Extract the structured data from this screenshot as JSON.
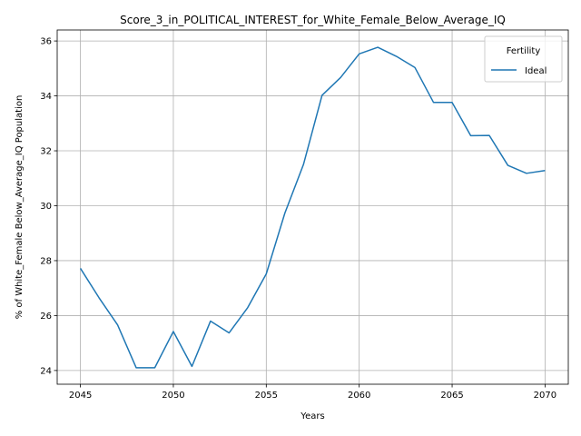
{
  "chart_data": {
    "type": "line",
    "title": "Score_3_in_POLITICAL_INTEREST_for_White_Female_Below_Average_IQ",
    "xlabel": "Years",
    "ylabel": "% of White_Female Below_Average_IQ Population",
    "xlim": [
      2043.75,
      2071.25
    ],
    "ylim": [
      23.5,
      36.4
    ],
    "xticks": [
      2045,
      2050,
      2055,
      2060,
      2065,
      2070
    ],
    "yticks": [
      24,
      26,
      28,
      30,
      32,
      34,
      36
    ],
    "grid": true,
    "legend": {
      "title": "Fertility",
      "placement": "top-right"
    },
    "series": [
      {
        "name": "Ideal",
        "color": "#1f77b4",
        "x": [
          2045,
          2046,
          2047,
          2048,
          2049,
          2050,
          2051,
          2052,
          2053,
          2054,
          2055,
          2056,
          2057,
          2058,
          2059,
          2060,
          2061,
          2062,
          2063,
          2064,
          2065,
          2066,
          2067,
          2068,
          2069,
          2070
        ],
        "y": [
          27.72,
          26.65,
          25.66,
          24.1,
          24.1,
          25.42,
          24.15,
          25.8,
          25.37,
          26.29,
          27.52,
          29.73,
          31.5,
          34.02,
          34.67,
          35.53,
          35.77,
          35.44,
          35.03,
          33.76,
          33.76,
          32.55,
          32.56,
          31.47,
          31.18,
          31.28
        ]
      }
    ]
  }
}
